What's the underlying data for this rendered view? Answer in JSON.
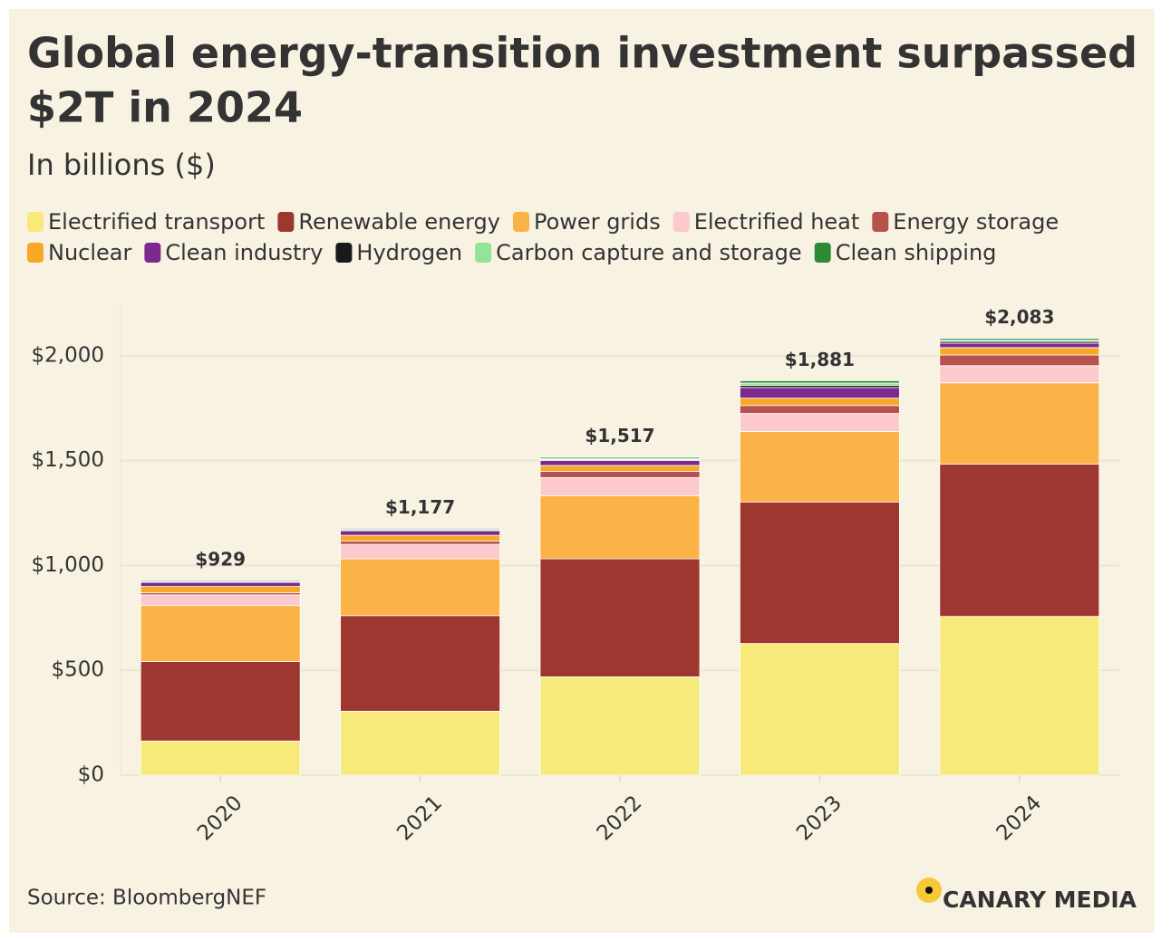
{
  "chart_data": {
    "type": "stacked-bar",
    "title": [
      "Global energy-transition investment surpassed",
      "$2T in 2024"
    ],
    "subtitle": "In billions ($)",
    "categories": [
      "2020",
      "2021",
      "2022",
      "2023",
      "2024"
    ],
    "series": [
      {
        "name": "Electrified transport",
        "color": "#f7ea7b",
        "values": [
          163,
          305,
          469,
          628,
          757
        ]
      },
      {
        "name": "Renewable energy",
        "color": "#9f3731",
        "values": [
          379,
          456,
          563,
          675,
          727
        ]
      },
      {
        "name": "Power grids",
        "color": "#fbb246",
        "values": [
          267,
          271,
          301,
          336,
          387
        ]
      },
      {
        "name": "Electrified heat",
        "color": "#fcc9cc",
        "values": [
          51,
          69,
          86,
          86,
          82
        ]
      },
      {
        "name": "Energy storage",
        "color": "#b8524f",
        "values": [
          10,
          15,
          30,
          38,
          51
        ]
      },
      {
        "name": "Nuclear",
        "color": "#f7a826",
        "values": [
          30,
          28,
          28,
          35,
          35
        ]
      },
      {
        "name": "Clean industry",
        "color": "#7d2a8c",
        "values": [
          20,
          22,
          24,
          51,
          21
        ]
      },
      {
        "name": "Hydrogen",
        "color": "#1a1a1a",
        "values": [
          1,
          2,
          4,
          10,
          8
        ]
      },
      {
        "name": "Carbon capture and storage",
        "color": "#93e39a",
        "values": [
          3,
          4,
          6,
          11,
          7
        ]
      },
      {
        "name": "Clean shipping",
        "color": "#2f8a38",
        "values": [
          5,
          5,
          6,
          11,
          8
        ]
      }
    ],
    "totals": [
      929,
      1177,
      1517,
      1881,
      2083
    ],
    "totals_labels": [
      "$929",
      "$1,177",
      "$1,517",
      "$1,881",
      "$2,083"
    ],
    "ylim": [
      0,
      2250
    ],
    "yticks": [
      {
        "value": 0,
        "label": "$0"
      },
      {
        "value": 500,
        "label": "$500"
      },
      {
        "value": 1000,
        "label": "$1,000"
      },
      {
        "value": 1500,
        "label": "$1,500"
      },
      {
        "value": 2000,
        "label": "$2,000"
      }
    ],
    "grid": true,
    "source": "Source: BloombergNEF",
    "brand": "CANARY MEDIA"
  }
}
